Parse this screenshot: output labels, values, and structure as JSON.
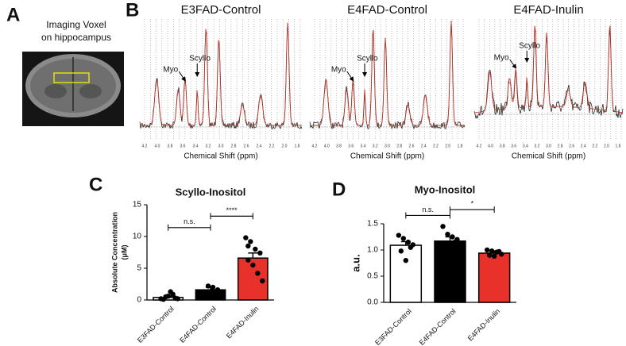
{
  "panels": {
    "A": {
      "label": "A",
      "caption": [
        "Imaging Voxel",
        "on hippocampus"
      ]
    },
    "B": {
      "label": "B",
      "spectra": [
        "E3FAD-Control",
        "E4FAD-Control",
        "E4FAD-Inulin"
      ],
      "peak_labels": [
        "Myo",
        "Scyllo"
      ],
      "xlabel": "Chemical Shift (ppm)",
      "xticks": [
        "4.2",
        "4.0",
        "3.8",
        "3.6",
        "3.4",
        "3.2",
        "3.0",
        "2.8",
        "2.6",
        "2.4",
        "2.2",
        "2.0",
        "1.8"
      ]
    }
  },
  "chart_data": [
    {
      "type": "bar",
      "panel_label": "C",
      "title": "Scyllo-Inositol",
      "ylabel": [
        "Absolute Concentration",
        "(μM)"
      ],
      "categories": [
        "E3FAD-Control",
        "E4FAD-Control",
        "E4FAD-Inulin"
      ],
      "values": [
        0.4,
        1.6,
        6.6
      ],
      "errors": [
        0.2,
        0.4,
        0.8
      ],
      "colors": [
        "#ffffff",
        "#000000",
        "#e8312a"
      ],
      "points": [
        [
          0.2,
          0.5,
          1.3,
          0.3,
          0.1,
          0.6,
          0.9,
          0.2
        ],
        [
          1.0,
          2.2,
          2.0,
          1.6,
          1.2
        ],
        [
          9.8,
          9.2,
          8.0,
          7.4,
          6.3,
          5.5,
          4.2,
          3.0,
          8.5
        ]
      ],
      "ylim": [
        0,
        15
      ],
      "yticks": [
        0,
        5,
        10,
        15
      ],
      "annotations": [
        {
          "text": "n.s.",
          "between": [
            0,
            1
          ],
          "y": 11.4
        },
        {
          "text": "****",
          "between": [
            1,
            2
          ],
          "y": 13.2
        }
      ]
    },
    {
      "type": "bar",
      "panel_label": "D",
      "title": "Myo-Inositol",
      "ylabel": "a.u.",
      "categories": [
        "E3FAD-Control",
        "E4FAD-Control",
        "E4FAD-Inulin"
      ],
      "values": [
        1.09,
        1.17,
        0.94
      ],
      "errors": [
        0.07,
        0.08,
        0.04
      ],
      "colors": [
        "#ffffff",
        "#000000",
        "#e8312a"
      ],
      "points": [
        [
          1.28,
          1.22,
          1.15,
          1.1,
          0.98,
          0.8,
          1.05
        ],
        [
          1.45,
          1.3,
          1.25,
          1.2,
          1.1,
          1.0,
          1.15
        ],
        [
          1.0,
          0.98,
          0.96,
          0.92,
          0.9,
          0.88,
          0.97
        ]
      ],
      "ylim": [
        0,
        1.5
      ],
      "yticks": [
        {
          "value": 0,
          "label": "0.0"
        },
        {
          "value": 0.5,
          "label": "0.5"
        },
        {
          "value": 1,
          "label": "1.0"
        },
        {
          "value": 1.5,
          "label": "1.5"
        }
      ],
      "annotations": [
        {
          "text": "n.s.",
          "between": [
            0,
            1
          ],
          "y": 1.66
        },
        {
          "text": "*",
          "between": [
            1,
            2
          ],
          "y": 1.77
        }
      ]
    }
  ]
}
